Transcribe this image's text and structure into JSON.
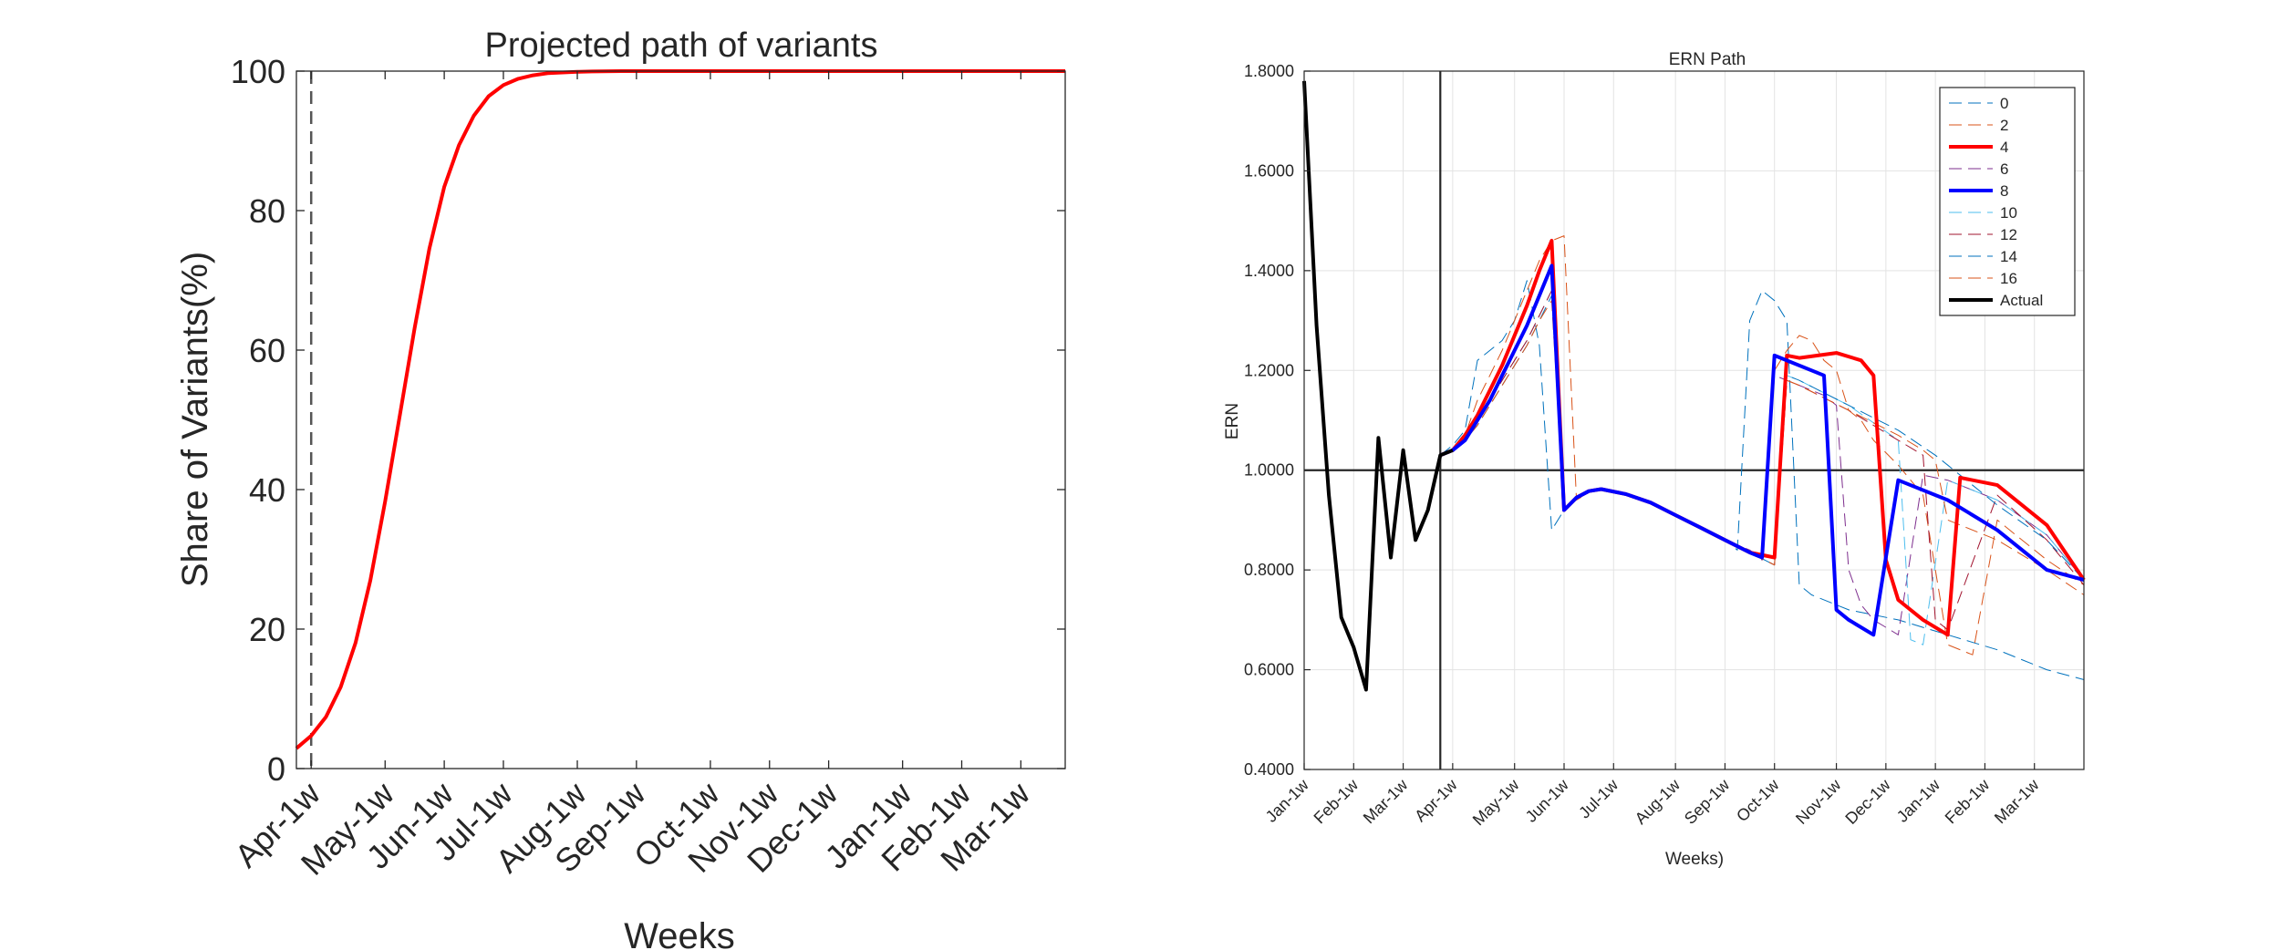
{
  "chart_data": [
    {
      "type": "line",
      "title": "Projected path of variants",
      "xlabel": "Weeks",
      "ylabel": "Share of Variants(%)",
      "ylim": [
        0,
        100
      ],
      "yticks": [
        "0",
        "20",
        "40",
        "60",
        "80",
        "100"
      ],
      "xlim": [
        0,
        52
      ],
      "xticks": [
        {
          "x": 1,
          "label": "Apr-1w"
        },
        {
          "x": 6,
          "label": "May-1w"
        },
        {
          "x": 10,
          "label": "Jun-1w"
        },
        {
          "x": 14,
          "label": "Jul-1w"
        },
        {
          "x": 19,
          "label": "Aug-1w"
        },
        {
          "x": 23,
          "label": "Sep-1w"
        },
        {
          "x": 28,
          "label": "Oct-1w"
        },
        {
          "x": 32,
          "label": "Nov-1w"
        },
        {
          "x": 36,
          "label": "Dec-1w"
        },
        {
          "x": 41,
          "label": "Jan-1w"
        },
        {
          "x": 45,
          "label": "Feb-1w"
        },
        {
          "x": 49,
          "label": "Mar-1w"
        }
      ],
      "vline_x": 1,
      "grid": false,
      "series": [
        {
          "color": "#ff0000",
          "x": [
            0,
            1,
            2,
            3,
            4,
            5,
            6,
            7,
            8,
            9,
            10,
            11,
            12,
            13,
            14,
            15,
            16,
            17,
            18,
            19,
            20,
            22,
            24,
            26,
            30,
            40,
            52
          ],
          "values": [
            2.9,
            4.7,
            7.4,
            11.7,
            18.0,
            27.0,
            38.3,
            50.7,
            63.2,
            74.6,
            83.4,
            89.4,
            93.6,
            96.4,
            98.0,
            98.9,
            99.4,
            99.7,
            99.8,
            99.9,
            99.95,
            100,
            100,
            100,
            100,
            100,
            100
          ]
        }
      ]
    },
    {
      "type": "line",
      "title": "ERN Path",
      "xlabel": "Weeks)",
      "ylabel": "ERN",
      "ylim": [
        0.4,
        1.8
      ],
      "yticks": [
        "0.4000",
        "0.6000",
        "0.8000",
        "1.0000",
        "1.2000",
        "1.4000",
        "1.6000",
        "1.8000"
      ],
      "xlim": [
        0,
        63
      ],
      "xticks": [
        {
          "x": 0,
          "label": "Jan-1w"
        },
        {
          "x": 4,
          "label": "Feb-1w"
        },
        {
          "x": 8,
          "label": "Mar-1w"
        },
        {
          "x": 12,
          "label": "Apr-1w"
        },
        {
          "x": 17,
          "label": "May-1w"
        },
        {
          "x": 21,
          "label": "Jun-1w"
        },
        {
          "x": 25,
          "label": "Jul-1w"
        },
        {
          "x": 30,
          "label": "Aug-1w"
        },
        {
          "x": 34,
          "label": "Sep-1w"
        },
        {
          "x": 38,
          "label": "Oct-1w"
        },
        {
          "x": 43,
          "label": "Nov-1w"
        },
        {
          "x": 47,
          "label": "Dec-1w"
        },
        {
          "x": 51,
          "label": "Jan-1w"
        },
        {
          "x": 55,
          "label": "Feb-1w"
        },
        {
          "x": 59,
          "label": "Mar-1w"
        }
      ],
      "hline_y": 1.0,
      "vline_x": 11,
      "grid": true,
      "legend_position": "top-right",
      "series": [
        {
          "name": "0",
          "color": "#0072bd",
          "style": "dashed",
          "width": 1,
          "x": [
            11,
            12,
            13,
            14,
            15,
            16,
            17,
            18,
            19,
            20,
            21,
            22,
            23,
            24,
            26,
            28,
            30,
            32,
            34,
            35,
            36,
            37,
            38,
            39,
            40,
            41,
            44,
            48,
            52,
            56,
            60,
            63
          ],
          "values": [
            1.03,
            1.05,
            1.08,
            1.22,
            1.24,
            1.26,
            1.3,
            1.38,
            1.25,
            0.88,
            0.92,
            0.945,
            0.958,
            0.962,
            0.953,
            0.935,
            0.91,
            0.885,
            0.86,
            0.84,
            1.3,
            1.36,
            1.34,
            1.3,
            0.77,
            0.75,
            0.72,
            0.7,
            0.67,
            0.64,
            0.6,
            0.58
          ]
        },
        {
          "name": "2",
          "color": "#d95319",
          "style": "dashed",
          "width": 1,
          "x": [
            11,
            12,
            13,
            14,
            15,
            16,
            17,
            18,
            19,
            20,
            21,
            22,
            23,
            24,
            26,
            28,
            30,
            32,
            34,
            36,
            37,
            38,
            39,
            40,
            41,
            42,
            43,
            44,
            45,
            46,
            48,
            50,
            52,
            54,
            56,
            60,
            63
          ],
          "values": [
            1.03,
            1.04,
            1.07,
            1.14,
            1.19,
            1.24,
            1.3,
            1.36,
            1.42,
            1.46,
            1.47,
            0.94,
            0.955,
            0.962,
            0.952,
            0.935,
            0.91,
            0.885,
            0.86,
            0.835,
            0.82,
            1.2,
            1.24,
            1.27,
            1.26,
            1.22,
            1.2,
            1.12,
            1.1,
            1.06,
            1.01,
            0.95,
            0.65,
            0.63,
            0.9,
            0.82,
            0.77
          ]
        },
        {
          "name": "4",
          "color": "#ff0000",
          "style": "solid",
          "width": 4,
          "x": [
            11,
            12,
            13,
            14,
            15,
            16,
            17,
            18,
            19,
            20,
            21,
            22,
            23,
            24,
            26,
            28,
            30,
            32,
            34,
            36,
            38,
            39,
            40,
            43,
            45,
            46,
            47,
            48,
            50,
            52,
            53,
            56,
            60,
            63
          ],
          "values": [
            1.03,
            1.04,
            1.07,
            1.11,
            1.16,
            1.21,
            1.27,
            1.33,
            1.4,
            1.46,
            0.92,
            0.945,
            0.958,
            0.962,
            0.952,
            0.935,
            0.91,
            0.885,
            0.86,
            0.835,
            0.825,
            1.23,
            1.225,
            1.235,
            1.22,
            1.19,
            0.82,
            0.74,
            0.7,
            0.67,
            0.985,
            0.97,
            0.89,
            0.78
          ]
        },
        {
          "name": "6",
          "color": "#7e2f8e",
          "style": "dashed",
          "width": 1,
          "x": [
            11,
            12,
            13,
            14,
            15,
            16,
            17,
            18,
            19,
            20,
            21,
            22,
            23,
            24,
            26,
            28,
            30,
            32,
            34,
            36,
            37,
            38,
            39,
            40,
            42,
            43,
            44,
            45,
            46,
            48,
            50,
            52,
            56,
            60,
            63
          ],
          "values": [
            1.03,
            1.04,
            1.06,
            1.1,
            1.14,
            1.19,
            1.24,
            1.29,
            1.35,
            1.41,
            0.92,
            0.945,
            0.958,
            0.962,
            0.952,
            0.935,
            0.91,
            0.885,
            0.86,
            0.84,
            0.82,
            1.19,
            1.18,
            1.17,
            1.15,
            1.13,
            0.8,
            0.73,
            0.7,
            0.67,
            0.99,
            0.98,
            0.94,
            0.87,
            0.78
          ]
        },
        {
          "name": "8",
          "color": "#0000ff",
          "style": "solid",
          "width": 4,
          "x": [
            11,
            12,
            13,
            14,
            15,
            16,
            17,
            18,
            19,
            20,
            21,
            22,
            23,
            24,
            26,
            28,
            30,
            32,
            34,
            36,
            37,
            38,
            42,
            43,
            44,
            46,
            48,
            52,
            56,
            60,
            63
          ],
          "values": [
            1.03,
            1.04,
            1.06,
            1.1,
            1.14,
            1.19,
            1.24,
            1.29,
            1.35,
            1.41,
            0.92,
            0.945,
            0.958,
            0.962,
            0.952,
            0.935,
            0.91,
            0.885,
            0.86,
            0.835,
            0.825,
            1.23,
            1.19,
            0.72,
            0.7,
            0.67,
            0.98,
            0.94,
            0.88,
            0.8,
            0.78
          ]
        },
        {
          "name": "10",
          "color": "#4dbeee",
          "style": "dashed",
          "width": 1,
          "x": [
            11,
            12,
            13,
            14,
            15,
            16,
            17,
            18,
            19,
            20,
            21,
            22,
            23,
            24,
            26,
            28,
            30,
            32,
            34,
            36,
            38,
            39,
            40,
            44,
            48,
            49,
            50,
            52,
            56,
            60,
            63
          ],
          "values": [
            1.03,
            1.04,
            1.06,
            1.1,
            1.14,
            1.18,
            1.22,
            1.26,
            1.31,
            1.36,
            0.92,
            0.945,
            0.958,
            0.962,
            0.952,
            0.935,
            0.91,
            0.885,
            0.86,
            0.835,
            0.81,
            1.19,
            1.18,
            1.13,
            1.06,
            0.66,
            0.65,
            0.98,
            0.94,
            0.87,
            0.78
          ]
        },
        {
          "name": "12",
          "color": "#a2142f",
          "style": "dashed",
          "width": 1,
          "x": [
            11,
            12,
            13,
            14,
            15,
            16,
            17,
            18,
            19,
            20,
            21,
            22,
            23,
            24,
            26,
            28,
            30,
            32,
            34,
            36,
            38,
            39,
            40,
            44,
            48,
            50,
            51,
            52,
            56,
            60,
            63
          ],
          "values": [
            1.03,
            1.04,
            1.06,
            1.1,
            1.14,
            1.18,
            1.22,
            1.26,
            1.31,
            1.36,
            0.92,
            0.945,
            0.958,
            0.962,
            0.952,
            0.935,
            0.91,
            0.885,
            0.86,
            0.835,
            0.81,
            1.18,
            1.17,
            1.12,
            1.06,
            1.03,
            0.7,
            0.68,
            0.95,
            0.86,
            0.77
          ]
        },
        {
          "name": "14",
          "color": "#0072bd",
          "style": "dashed",
          "width": 1,
          "x": [
            11,
            12,
            13,
            14,
            15,
            16,
            17,
            18,
            19,
            20,
            21,
            22,
            23,
            24,
            26,
            28,
            30,
            32,
            34,
            36,
            38,
            39,
            40,
            44,
            48,
            51,
            52,
            53,
            56,
            60,
            63
          ],
          "values": [
            1.03,
            1.04,
            1.06,
            1.09,
            1.13,
            1.17,
            1.21,
            1.25,
            1.3,
            1.35,
            0.92,
            0.945,
            0.958,
            0.962,
            0.952,
            0.935,
            0.91,
            0.885,
            0.86,
            0.835,
            0.81,
            1.19,
            1.18,
            1.13,
            1.08,
            1.03,
            1.01,
            0.99,
            0.93,
            0.86,
            0.78
          ]
        },
        {
          "name": "16",
          "color": "#d95319",
          "style": "dashed",
          "width": 1,
          "x": [
            11,
            12,
            13,
            14,
            15,
            16,
            17,
            18,
            19,
            20,
            21,
            22,
            23,
            24,
            26,
            28,
            30,
            32,
            34,
            36,
            38,
            39,
            40,
            44,
            48,
            50,
            51,
            52,
            56,
            60,
            63
          ],
          "values": [
            1.03,
            1.04,
            1.06,
            1.09,
            1.13,
            1.17,
            1.21,
            1.25,
            1.3,
            1.34,
            0.92,
            0.945,
            0.958,
            0.962,
            0.952,
            0.935,
            0.91,
            0.885,
            0.86,
            0.835,
            0.81,
            1.18,
            1.17,
            1.12,
            1.07,
            1.04,
            1.02,
            0.9,
            0.86,
            0.8,
            0.75
          ]
        },
        {
          "name": "Actual",
          "color": "#000000",
          "style": "solid",
          "width": 4,
          "x": [
            0,
            1,
            2,
            3,
            4,
            5,
            6,
            7,
            8,
            9,
            10,
            11,
            12
          ],
          "values": [
            1.78,
            1.29,
            0.95,
            0.705,
            0.645,
            0.56,
            1.065,
            0.825,
            1.04,
            0.86,
            0.92,
            1.03,
            1.04
          ]
        }
      ]
    }
  ]
}
